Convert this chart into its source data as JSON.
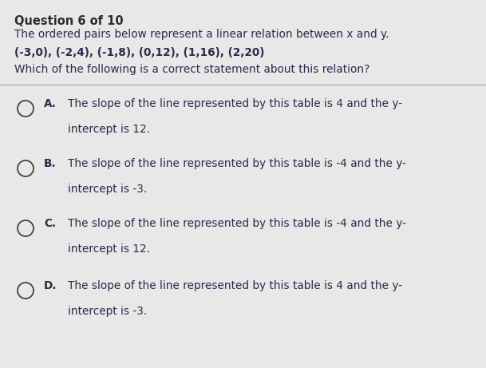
{
  "title": "Question 6 of 10",
  "title_color": "#2c2c2c",
  "bg_color": "#e8e8e8",
  "line1": "The ordered pairs below represent a linear relation between x and y.",
  "line2": "(-3,0), (-2,4), (-1,8), (0,12), (1,16), (2,20)",
  "line3": "Which of the following is a correct statement about this relation?",
  "divider_color": "#9999bb",
  "options": [
    {
      "letter": "A.",
      "text_line1": "The slope of the line represented by this table is 4 and the y-",
      "text_line2": "intercept is 12."
    },
    {
      "letter": "B.",
      "text_line1": "The slope of the line represented by this table is -4 and the y-",
      "text_line2": "intercept is -3."
    },
    {
      "letter": "C.",
      "text_line1": "The slope of the line represented by this table is -4 and the y-",
      "text_line2": "intercept is 12."
    },
    {
      "letter": "D.",
      "text_line1": "The slope of the line represented by this table is 4 and the y-",
      "text_line2": "intercept is -3."
    }
  ],
  "text_color": "#2a2a4a",
  "circle_color": "#444444",
  "font_size_title": 10.5,
  "font_size_body": 9.8,
  "font_size_option": 9.8
}
